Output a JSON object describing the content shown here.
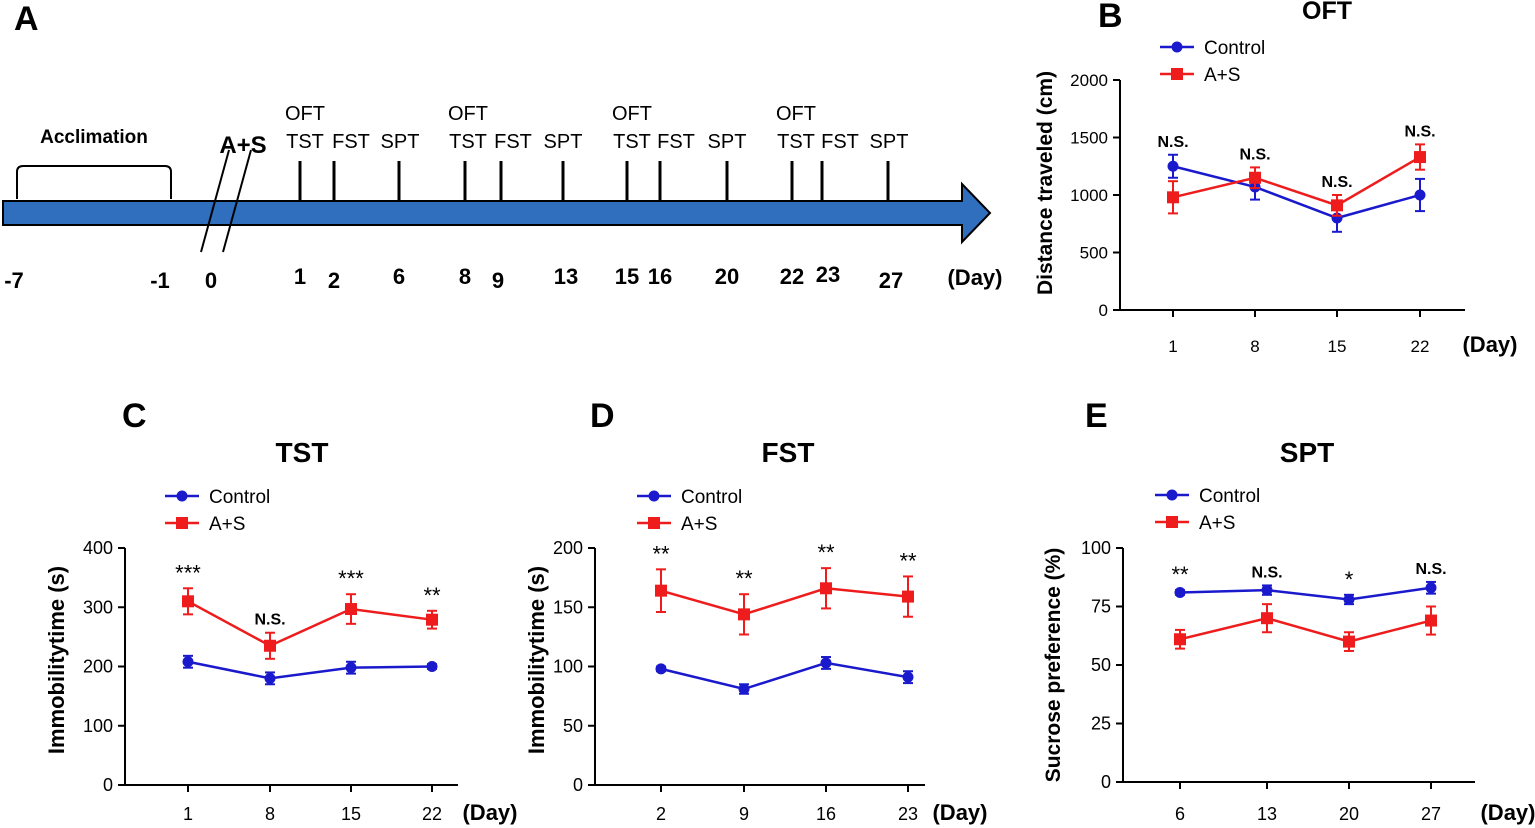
{
  "timeline": {
    "panel_letter": "A",
    "acclimation_label": "Acclimation",
    "treatment_label": "A+S",
    "unit_label": "(Day)",
    "days": [
      "-7",
      "-1",
      "0",
      "1",
      "2",
      "6",
      "8",
      "9",
      "13",
      "15",
      "16",
      "20",
      "22",
      "23",
      "27"
    ],
    "test_groups": [
      {
        "oft": "OFT",
        "tst": "TST",
        "fst": "FST",
        "spt": "SPT"
      },
      {
        "oft": "OFT",
        "tst": "TST",
        "fst": "FST",
        "spt": "SPT"
      },
      {
        "oft": "OFT",
        "tst": "TST",
        "fst": "FST",
        "spt": "SPT"
      },
      {
        "oft": "OFT",
        "tst": "TST",
        "fst": "FST",
        "spt": "SPT"
      }
    ]
  },
  "chart_data": [
    {
      "id": "B",
      "type": "line",
      "panel_letter": "B",
      "title": "OFT",
      "ylabel": "Distance traveled (cm)",
      "xunit": "(Day)",
      "categories": [
        "1",
        "8",
        "15",
        "22"
      ],
      "ylim": [
        0,
        2000
      ],
      "yticks": [
        0,
        500,
        1000,
        1500,
        2000
      ],
      "series": [
        {
          "name": "Control",
          "color": "#1a1acc",
          "marker": "circle",
          "values": [
            1250,
            1070,
            800,
            1000
          ],
          "errors": [
            100,
            110,
            120,
            140
          ]
        },
        {
          "name": "A+S",
          "color": "#ee1c1c",
          "marker": "square",
          "values": [
            980,
            1150,
            910,
            1330
          ],
          "errors": [
            140,
            90,
            90,
            110
          ]
        }
      ],
      "annotations": [
        "N.S.",
        "N.S.",
        "N.S.",
        "N.S."
      ]
    },
    {
      "id": "C",
      "type": "line",
      "panel_letter": "C",
      "title": "TST",
      "ylabel": "Immobilitytime (s)",
      "xunit": "(Day)",
      "categories": [
        "1",
        "8",
        "15",
        "22"
      ],
      "ylim": [
        0,
        400
      ],
      "yticks": [
        0,
        100,
        200,
        300,
        400
      ],
      "series": [
        {
          "name": "Control",
          "color": "#1a1acc",
          "marker": "circle",
          "values": [
            208,
            180,
            198,
            200
          ],
          "errors": [
            10,
            10,
            10,
            4
          ]
        },
        {
          "name": "A+S",
          "color": "#ee1c1c",
          "marker": "square",
          "values": [
            310,
            235,
            297,
            279
          ],
          "errors": [
            22,
            22,
            25,
            15
          ]
        }
      ],
      "annotations": [
        "***",
        "N.S.",
        "***",
        "**"
      ]
    },
    {
      "id": "D",
      "type": "line",
      "panel_letter": "D",
      "title": "FST",
      "ylabel": "Immobilitytime (s)",
      "xunit": "(Day)",
      "categories": [
        "2",
        "9",
        "16",
        "23"
      ],
      "ylim": [
        0,
        200
      ],
      "yticks": [
        0,
        50,
        100,
        150,
        200
      ],
      "series": [
        {
          "name": "Control",
          "color": "#1a1acc",
          "marker": "circle",
          "values": [
            98,
            81,
            103,
            91
          ],
          "errors": [
            2,
            4,
            5,
            5
          ]
        },
        {
          "name": "A+S",
          "color": "#ee1c1c",
          "marker": "square",
          "values": [
            164,
            144,
            166,
            159
          ],
          "errors": [
            18,
            17,
            17,
            17
          ]
        }
      ],
      "annotations": [
        "**",
        "**",
        "**",
        "**"
      ]
    },
    {
      "id": "E",
      "type": "line",
      "panel_letter": "E",
      "title": "SPT",
      "ylabel": "Sucrose preference (%)",
      "xunit": "(Day)",
      "categories": [
        "6",
        "13",
        "20",
        "27"
      ],
      "ylim": [
        0,
        100
      ],
      "yticks": [
        0,
        25,
        50,
        75,
        100
      ],
      "series": [
        {
          "name": "Control",
          "color": "#1a1acc",
          "marker": "circle",
          "values": [
            81,
            82,
            78,
            83
          ],
          "errors": [
            1,
            2,
            2,
            2.5
          ]
        },
        {
          "name": "A+S",
          "color": "#ee1c1c",
          "marker": "square",
          "values": [
            61,
            70,
            60,
            69
          ],
          "errors": [
            4,
            6,
            4,
            6
          ]
        }
      ],
      "annotations": [
        "**",
        "N.S.",
        "*",
        "N.S."
      ]
    }
  ]
}
